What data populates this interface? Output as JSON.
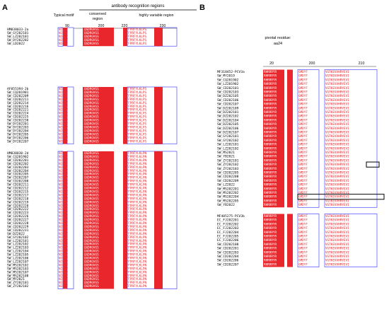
{
  "panelA": {
    "label": "A",
    "header": "antibody recognition regions",
    "col_typical": "Typical motif",
    "col_conserved": "conserved\nregion",
    "col_variable": "highly variable region",
    "ruler": [
      "90",
      "200",
      "220",
      "230"
    ],
    "groups": [
      {
        "names": [
          "HM038033-2a",
          "SW_GY202101",
          "SW_LZ202101",
          "SW_DY202202",
          "SW_LD2022"
        ],
        "seq": [
          "NINPT",
          "QGDRGVGS",
          "YTFPRFYLKLPS"
        ]
      },
      {
        "names": [
          "AF055394-2b",
          "SW_CQ201901",
          "SW_CD202209",
          "SW_CD202211",
          "SW_CD202214",
          "SW_CD202216",
          "SW_CD202221",
          "SW_CD202224",
          "SW_CD202225",
          "SW_CD202230",
          "SW_DY202201",
          "SW_DY202203",
          "SW_DY202204",
          "SW_DY202205",
          "SW_DY202206",
          "SW_DY202207"
        ],
        "seq": [
          "NINPT",
          "QGDRGVGS",
          "YTFPRFYLKLPS"
        ]
      },
      {
        "names": [
          "HM038030-2d",
          "SW_CQ201902",
          "SW_CD202201",
          "SW_CD202202",
          "SW_CD202203",
          "SW_CD202204",
          "SW_CD202205",
          "SW_CD202207",
          "SW_CD202208",
          "SW_CD202211",
          "SW_CD202212",
          "SW_CD202215",
          "SW_CD202217",
          "SW_CD202218",
          "SW_CD202219",
          "SW_CD202220",
          "SW_CD202222",
          "SW_CD202223",
          "SW_CD202226",
          "SW_CD202227",
          "SW_CD202228",
          "SW_CD202229",
          "SW_CD202231",
          "SW_DZ2022",
          "SW_GY202102",
          "SW_LZ202101",
          "SW_LZ202102",
          "SW_LZ202103",
          "SW_LZ202104",
          "SW_LZ202105",
          "SW_LZ202106",
          "SW_LZ202107",
          "SW_MS202102",
          "SW_MS202103",
          "SW_MS202107",
          "SW_MS202108",
          "SW_MY2021",
          "SW_ZY202101",
          "SW_ZY202102"
        ],
        "seq": [
          "NINPT",
          "QGDRGVGS",
          "YTFPRFYLKLPN"
        ]
      }
    ]
  },
  "panelB": {
    "label": "B",
    "pivotal": "pivotal residue:",
    "aa": "aa24",
    "ruler": [
      "20",
      "200",
      "210"
    ],
    "groups": [
      {
        "names": [
          "MF318452-PCV3a",
          "SW_MY2019",
          "SW_CQ201902",
          "SW_LZ201902",
          "SW_CD202101",
          "SW_CD202103",
          "SW_DZ202105",
          "SW_CD202106",
          "SW_CD202107",
          "SW_DZ202109",
          "SW_DZ202101",
          "SW_DZ202102",
          "SW_DZ202104",
          "SW_DZ202105",
          "SW_DZ202106",
          "SW_DZ202107",
          "SW_GY202101",
          "SW_GY202102",
          "SW_LZ202101",
          "SW_LZ202102",
          "SW_MS2021",
          "SW_YB2021",
          "SW_ZY202101",
          "SW_ZY202102",
          "SW_ZY202103",
          "SW_CD202205",
          "SW_CD202208",
          "SW_CD202209",
          "SW_LZ2022",
          "SW_MS202201",
          "SW_MS202202",
          "SW_MS202204",
          "SW_MS202205",
          "SW_YB2022"
        ],
        "seq": [
          "RHRRRYR",
          "GMDYF",
          "VGTKEVVHRYEVI"
        ]
      },
      {
        "names": [
          "MF405275-PCV3b",
          "EC_FJ202201",
          "EC_FJ202202",
          "EC_FJ202203",
          "EC_FJ202204",
          "EC_FJ202205",
          "EC_FJ202206",
          "SW_CD202108",
          "SW_CD202201",
          "SW_CD202203",
          "SW_CD202204",
          "SW_CD202206",
          "SW_CD202207"
        ],
        "seq": [
          "RHRRRYR",
          "GMDYF",
          "VGTKEVVHRYEVI"
        ]
      }
    ]
  }
}
